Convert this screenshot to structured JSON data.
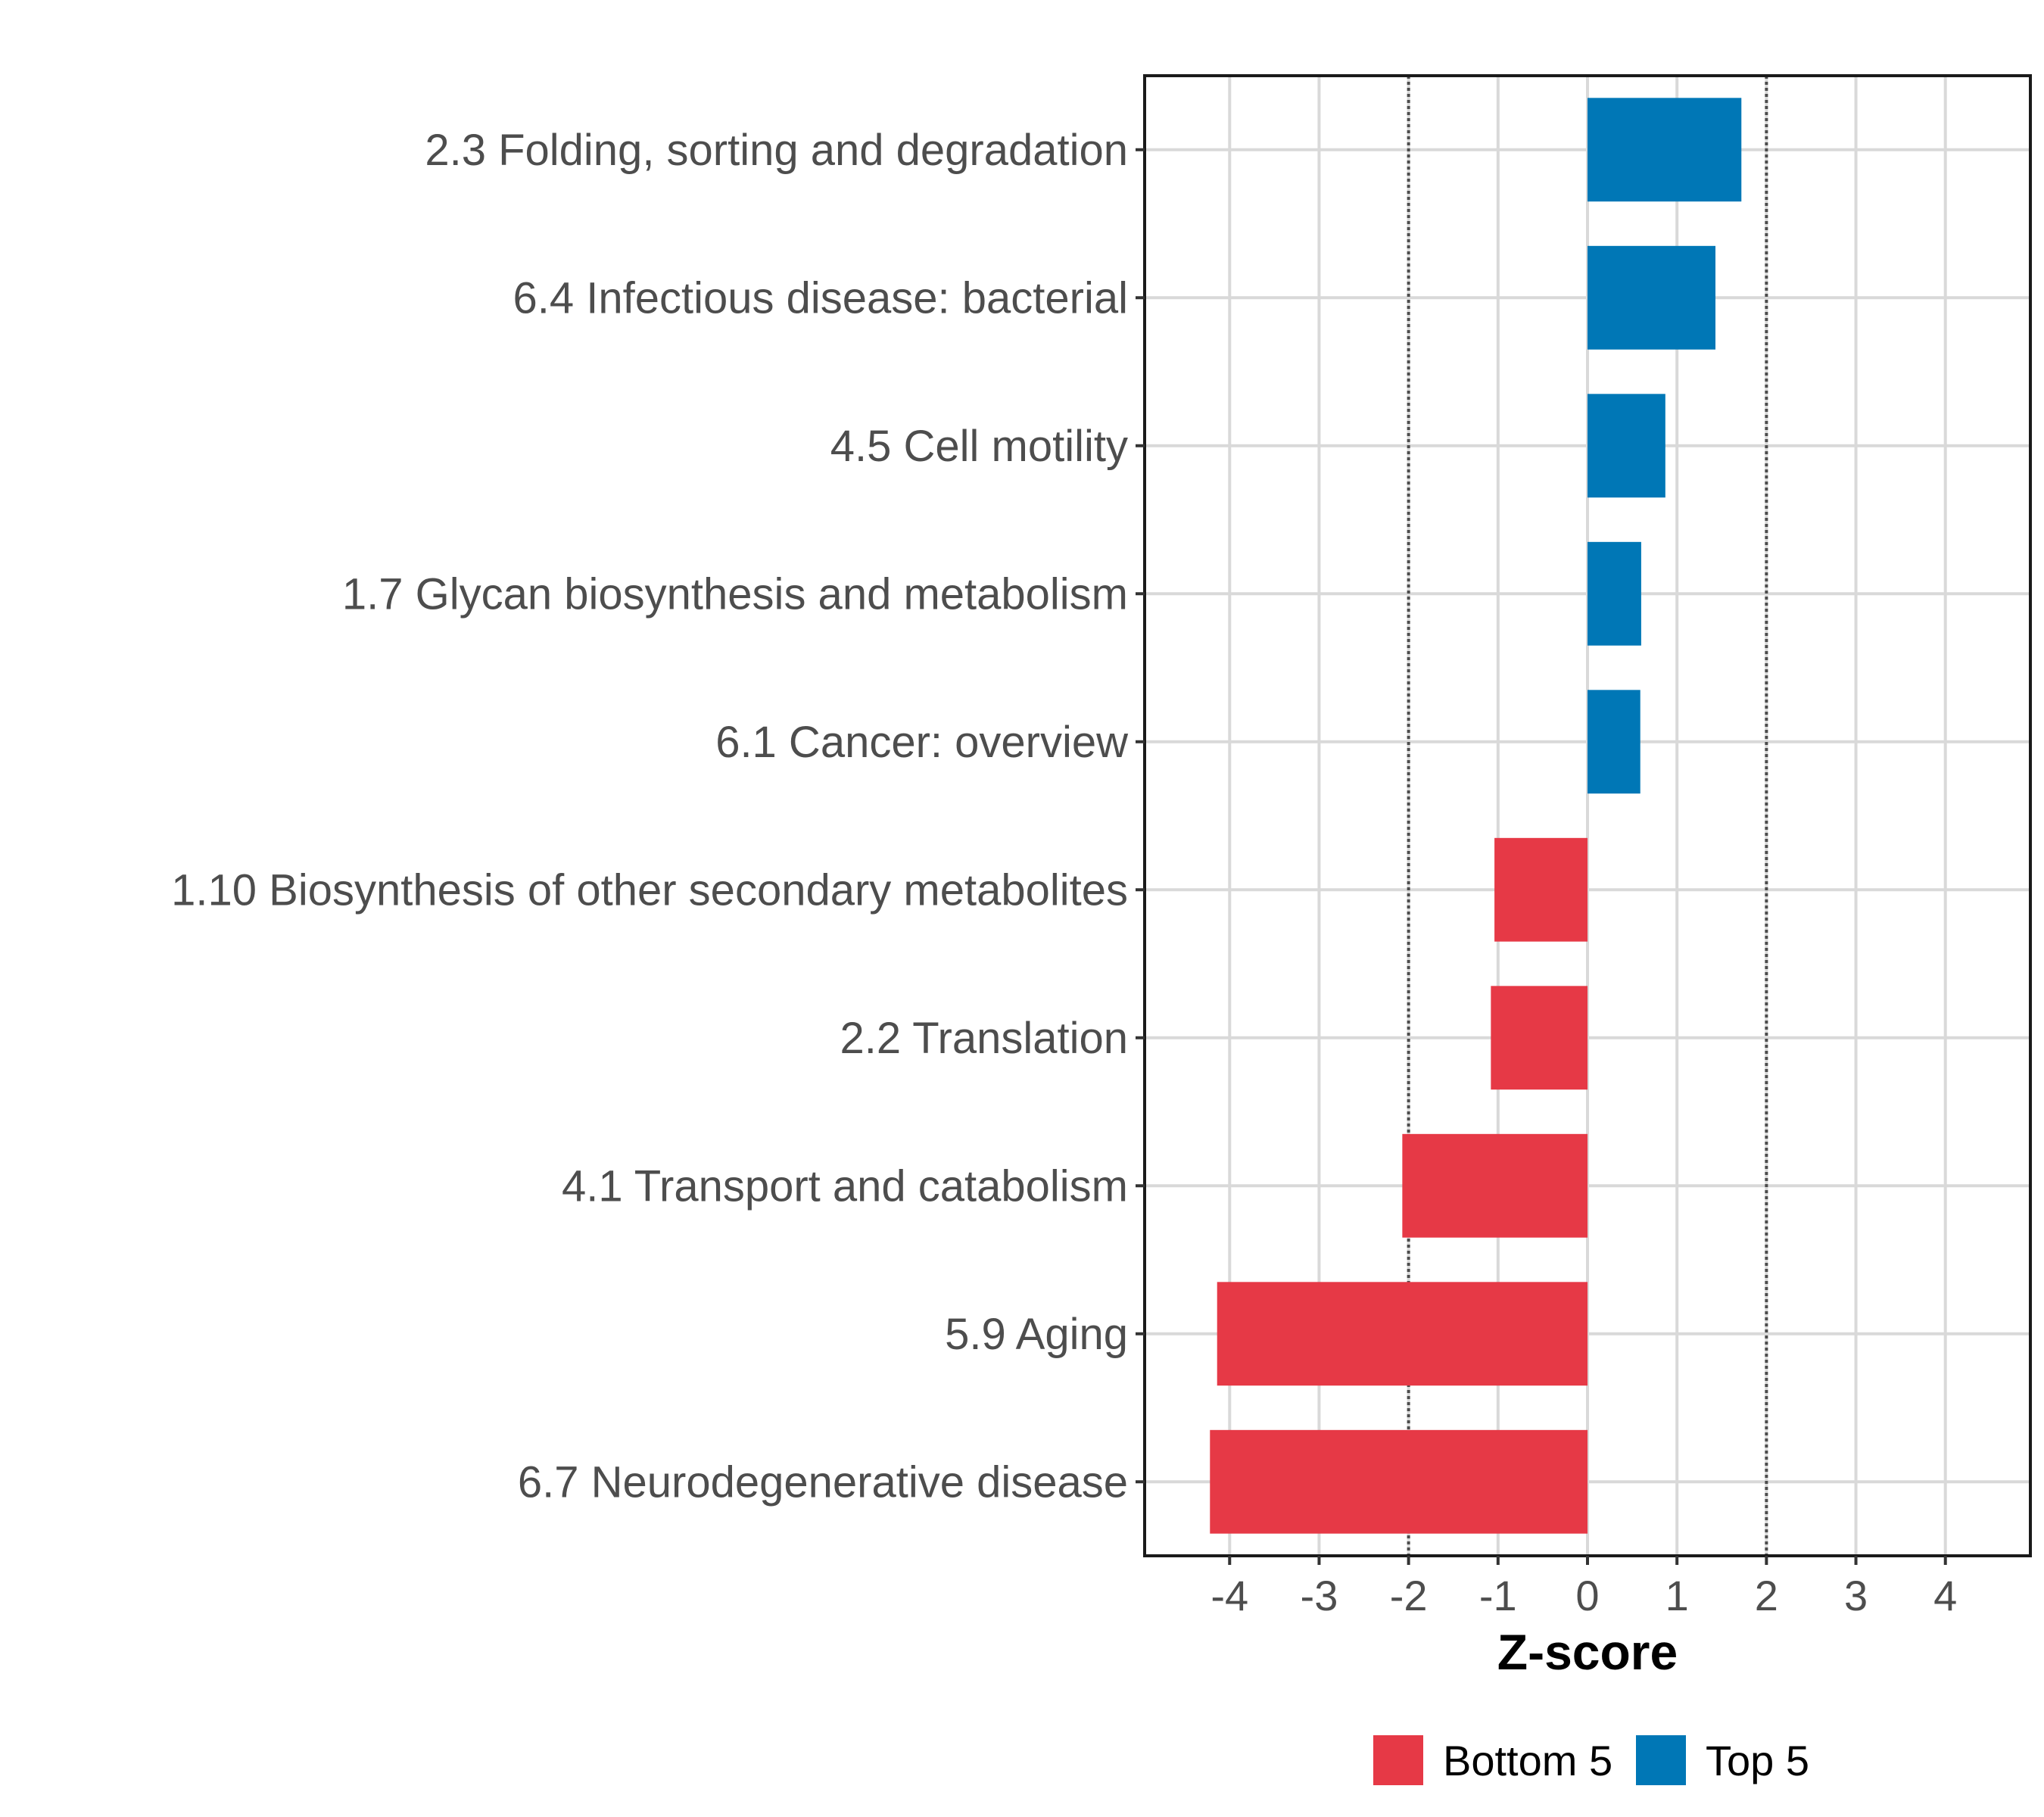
{
  "chart_data": {
    "type": "bar",
    "orientation": "horizontal",
    "categories": [
      "2.3 Folding, sorting and degradation",
      "6.4 Infectious disease: bacterial",
      "4.5 Cell motility",
      "1.7 Glycan biosynthesis and metabolism",
      "6.1 Cancer: overview",
      "1.10 Biosynthesis of other secondary metabolites",
      "2.2 Translation",
      "4.1 Transport and catabolism",
      "5.9 Aging",
      "6.7 Neurodegenerative disease"
    ],
    "values": [
      1.72,
      1.43,
      0.87,
      0.6,
      0.59,
      -1.04,
      -1.08,
      -2.07,
      -4.14,
      -4.22
    ],
    "groups": [
      "Top 5",
      "Top 5",
      "Top 5",
      "Top 5",
      "Top 5",
      "Bottom 5",
      "Bottom 5",
      "Bottom 5",
      "Bottom 5",
      "Bottom 5"
    ],
    "xlabel": "Z-score",
    "ylabel": "",
    "xlim": [
      -4.95,
      4.95
    ],
    "xticks": [
      -4,
      -3,
      -2,
      -1,
      0,
      1,
      2,
      3,
      4
    ],
    "xtick_labels": [
      "-4",
      "-3",
      "-2",
      "-1",
      "0",
      "1",
      "2",
      "3",
      "4"
    ],
    "reference_lines": [
      -2,
      2
    ],
    "grid": true,
    "legend": {
      "position": "bottom",
      "entries": [
        {
          "label": "Bottom 5",
          "color": "#e63946"
        },
        {
          "label": "Top 5",
          "color": "#0077b6"
        }
      ]
    }
  }
}
